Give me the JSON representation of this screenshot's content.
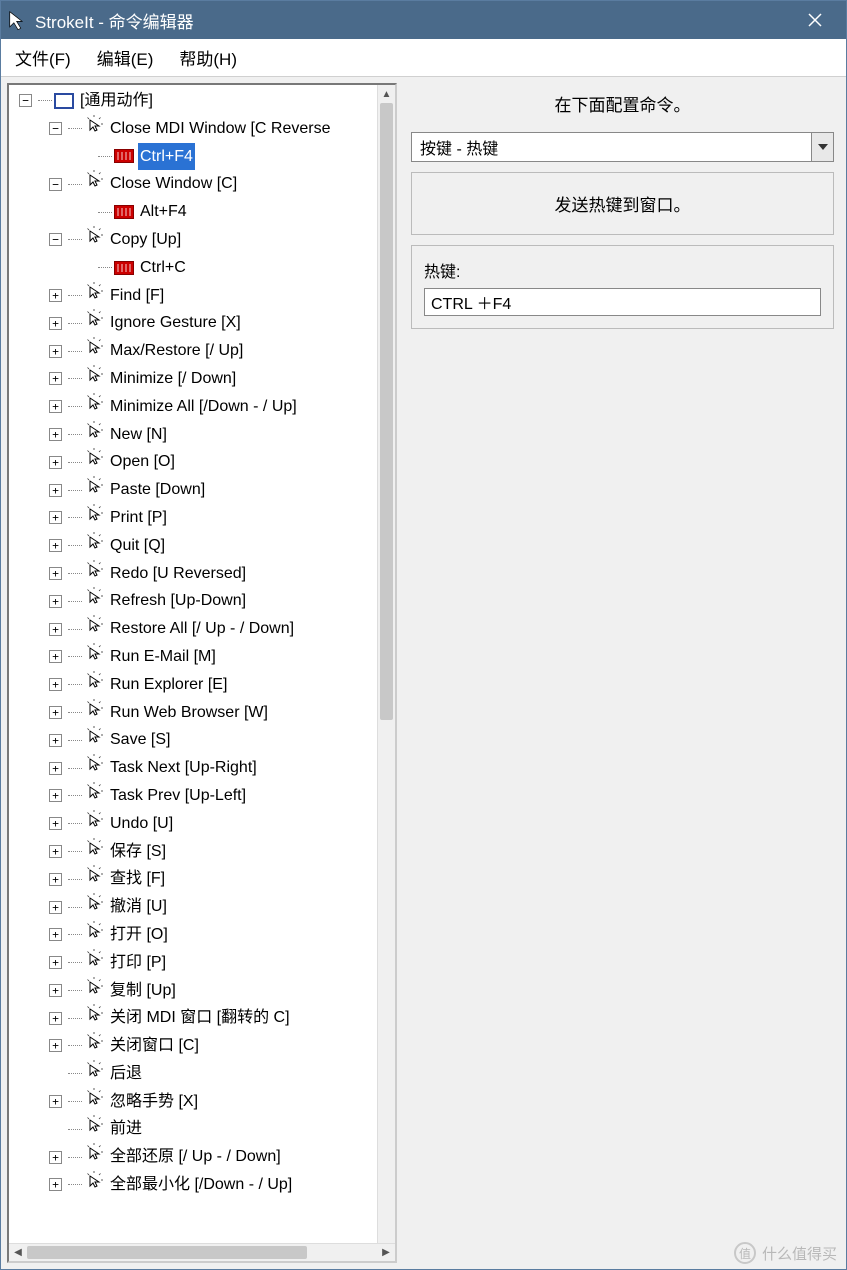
{
  "window": {
    "title": "StrokeIt - 命令编辑器",
    "titlebar_bg": "#4a6a8a",
    "titlebar_fg": "#ffffff"
  },
  "menubar": {
    "items": [
      "文件(F)",
      "编辑(E)",
      "帮助(H)"
    ]
  },
  "tree": {
    "root_label": "[通用动作]",
    "nodes": [
      {
        "kind": "root",
        "expand": "-",
        "icon": "app",
        "label": "[通用动作]",
        "depth": 0
      },
      {
        "kind": "gesture",
        "expand": "-",
        "icon": "gesture",
        "label": "Close MDI Window [C Reverse",
        "depth": 1
      },
      {
        "kind": "hotkey",
        "expand": "",
        "icon": "kb",
        "label": "Ctrl+F4",
        "depth": 2,
        "selected": true
      },
      {
        "kind": "gesture",
        "expand": "-",
        "icon": "gesture",
        "label": "Close Window [C]",
        "depth": 1
      },
      {
        "kind": "hotkey",
        "expand": "",
        "icon": "kb",
        "label": "Alt+F4",
        "depth": 2
      },
      {
        "kind": "gesture",
        "expand": "-",
        "icon": "gesture",
        "label": "Copy [Up]",
        "depth": 1
      },
      {
        "kind": "hotkey",
        "expand": "",
        "icon": "kb",
        "label": "Ctrl+C",
        "depth": 2
      },
      {
        "kind": "gesture",
        "expand": "+",
        "icon": "gesture",
        "label": "Find [F]",
        "depth": 1
      },
      {
        "kind": "gesture",
        "expand": "+",
        "icon": "gesture",
        "label": "Ignore Gesture [X]",
        "depth": 1
      },
      {
        "kind": "gesture",
        "expand": "+",
        "icon": "gesture",
        "label": "Max/Restore [/ Up]",
        "depth": 1
      },
      {
        "kind": "gesture",
        "expand": "+",
        "icon": "gesture",
        "label": "Minimize [/ Down]",
        "depth": 1
      },
      {
        "kind": "gesture",
        "expand": "+",
        "icon": "gesture",
        "label": "Minimize All [/Down - / Up]",
        "depth": 1
      },
      {
        "kind": "gesture",
        "expand": "+",
        "icon": "gesture",
        "label": "New [N]",
        "depth": 1
      },
      {
        "kind": "gesture",
        "expand": "+",
        "icon": "gesture",
        "label": "Open [O]",
        "depth": 1
      },
      {
        "kind": "gesture",
        "expand": "+",
        "icon": "gesture",
        "label": "Paste [Down]",
        "depth": 1
      },
      {
        "kind": "gesture",
        "expand": "+",
        "icon": "gesture",
        "label": "Print [P]",
        "depth": 1
      },
      {
        "kind": "gesture",
        "expand": "+",
        "icon": "gesture",
        "label": "Quit [Q]",
        "depth": 1
      },
      {
        "kind": "gesture",
        "expand": "+",
        "icon": "gesture",
        "label": "Redo [U Reversed]",
        "depth": 1
      },
      {
        "kind": "gesture",
        "expand": "+",
        "icon": "gesture",
        "label": "Refresh [Up-Down]",
        "depth": 1
      },
      {
        "kind": "gesture",
        "expand": "+",
        "icon": "gesture",
        "label": "Restore All [/ Up - / Down]",
        "depth": 1
      },
      {
        "kind": "gesture",
        "expand": "+",
        "icon": "gesture",
        "label": "Run E-Mail [M]",
        "depth": 1
      },
      {
        "kind": "gesture",
        "expand": "+",
        "icon": "gesture",
        "label": "Run Explorer [E]",
        "depth": 1
      },
      {
        "kind": "gesture",
        "expand": "+",
        "icon": "gesture",
        "label": "Run Web Browser [W]",
        "depth": 1
      },
      {
        "kind": "gesture",
        "expand": "+",
        "icon": "gesture",
        "label": "Save [S]",
        "depth": 1
      },
      {
        "kind": "gesture",
        "expand": "+",
        "icon": "gesture",
        "label": "Task Next [Up-Right]",
        "depth": 1
      },
      {
        "kind": "gesture",
        "expand": "+",
        "icon": "gesture",
        "label": "Task Prev [Up-Left]",
        "depth": 1
      },
      {
        "kind": "gesture",
        "expand": "+",
        "icon": "gesture",
        "label": "Undo [U]",
        "depth": 1
      },
      {
        "kind": "gesture",
        "expand": "+",
        "icon": "gesture",
        "label": "保存 [S]",
        "depth": 1
      },
      {
        "kind": "gesture",
        "expand": "+",
        "icon": "gesture",
        "label": "查找 [F]",
        "depth": 1
      },
      {
        "kind": "gesture",
        "expand": "+",
        "icon": "gesture",
        "label": "撤消 [U]",
        "depth": 1
      },
      {
        "kind": "gesture",
        "expand": "+",
        "icon": "gesture",
        "label": "打开 [O]",
        "depth": 1
      },
      {
        "kind": "gesture",
        "expand": "+",
        "icon": "gesture",
        "label": "打印 [P]",
        "depth": 1
      },
      {
        "kind": "gesture",
        "expand": "+",
        "icon": "gesture",
        "label": "复制 [Up]",
        "depth": 1
      },
      {
        "kind": "gesture",
        "expand": "+",
        "icon": "gesture",
        "label": "关闭 MDI 窗口 [翻转的 C]",
        "depth": 1
      },
      {
        "kind": "gesture",
        "expand": "+",
        "icon": "gesture",
        "label": "关闭窗口 [C]",
        "depth": 1
      },
      {
        "kind": "gesture",
        "expand": "",
        "icon": "gesture",
        "label": "后退",
        "depth": 1
      },
      {
        "kind": "gesture",
        "expand": "+",
        "icon": "gesture",
        "label": "忽略手势 [X]",
        "depth": 1
      },
      {
        "kind": "gesture",
        "expand": "",
        "icon": "gesture",
        "label": "前进",
        "depth": 1
      },
      {
        "kind": "gesture",
        "expand": "+",
        "icon": "gesture",
        "label": "全部还原 [/ Up - / Down]",
        "depth": 1
      },
      {
        "kind": "gesture",
        "expand": "+",
        "icon": "gesture",
        "label": "全部最小化 [/Down - / Up]",
        "depth": 1
      }
    ]
  },
  "right": {
    "heading": "在下面配置命令。",
    "combo_value": "按键 - 热键",
    "group1_text": "发送热键到窗口。",
    "hotkey_label": "热键:",
    "hotkey_value": "CTRL ＋F4"
  },
  "watermark": {
    "badge": "值",
    "text": "什么值得买"
  },
  "colors": {
    "selection_bg": "#2a72d4",
    "selection_fg": "#ffffff",
    "panel_bg": "#f0f0f0",
    "border": "#bbbbbb"
  }
}
